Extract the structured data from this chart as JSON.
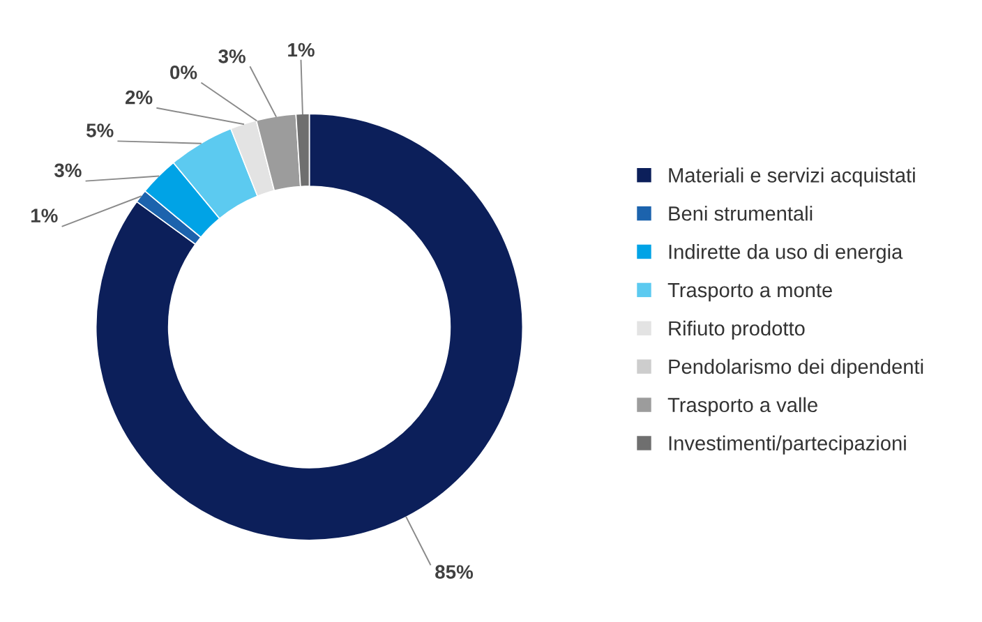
{
  "chart_data": {
    "type": "donut",
    "categories": [
      "Materiali e servizi acquistati",
      "Beni strumentali",
      "Indirette da uso di energia",
      "Trasporto a monte",
      "Rifiuto prodotto",
      "Pendolarismo dei dipendenti",
      "Trasporto a valle",
      "Investimenti/partecipazioni"
    ],
    "values": [
      85,
      1,
      3,
      5,
      2,
      0,
      3,
      1
    ],
    "colors": [
      "#0c1f5a",
      "#1c63ad",
      "#00a3e6",
      "#5ccaf0",
      "#e3e3e3",
      "#cdcdcd",
      "#9c9c9c",
      "#6f6f6f"
    ],
    "value_labels": [
      "85%",
      "1%",
      "3%",
      "5%",
      "2%",
      "0%",
      "3%",
      "1%"
    ],
    "legend": "right"
  }
}
